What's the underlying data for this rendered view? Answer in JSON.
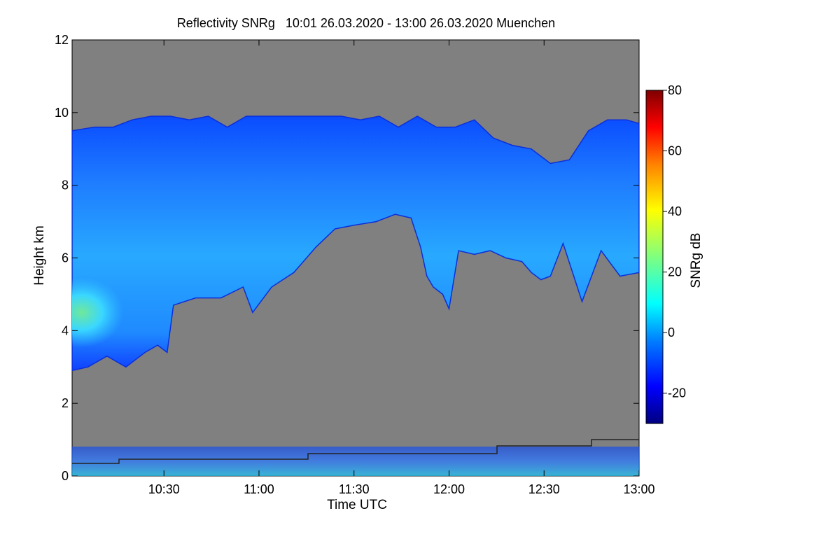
{
  "chart_data": {
    "type": "heatmap",
    "title": "Reflectivity SNRg   10:01 26.03.2020 - 13:00 26.03.2020 Muenchen",
    "xlabel": "Time UTC",
    "ylabel": "Height km",
    "colorbar_label": "SNRg dB",
    "x_range_minutes_utc": [
      601,
      780
    ],
    "x_ticks": [
      {
        "minute": 630,
        "label": "10:30"
      },
      {
        "minute": 660,
        "label": "11:00"
      },
      {
        "minute": 690,
        "label": "11:30"
      },
      {
        "minute": 720,
        "label": "12:00"
      },
      {
        "minute": 750,
        "label": "12:30"
      },
      {
        "minute": 780,
        "label": "13:00"
      }
    ],
    "ylim": [
      0,
      12
    ],
    "y_ticks": [
      0,
      2,
      4,
      6,
      8,
      10,
      12
    ],
    "colorbar_range": [
      -30,
      80
    ],
    "colorbar_ticks": [
      -20,
      0,
      20,
      40,
      60,
      80
    ],
    "cloud_base_km": [
      [
        601,
        2.9
      ],
      [
        606,
        3.0
      ],
      [
        612,
        3.3
      ],
      [
        618,
        3.0
      ],
      [
        624,
        3.4
      ],
      [
        628,
        3.6
      ],
      [
        631,
        3.4
      ],
      [
        633,
        4.7
      ],
      [
        640,
        4.9
      ],
      [
        648,
        4.9
      ],
      [
        655,
        5.2
      ],
      [
        658,
        4.5
      ],
      [
        664,
        5.2
      ],
      [
        671,
        5.6
      ],
      [
        678,
        6.3
      ],
      [
        684,
        6.8
      ],
      [
        690,
        6.9
      ],
      [
        697,
        7.0
      ],
      [
        703,
        7.2
      ],
      [
        708,
        7.1
      ],
      [
        711,
        6.3
      ],
      [
        713,
        5.5
      ],
      [
        715,
        5.2
      ],
      [
        718,
        5.0
      ],
      [
        720,
        4.6
      ],
      [
        723,
        6.2
      ],
      [
        728,
        6.1
      ],
      [
        733,
        6.2
      ],
      [
        738,
        6.0
      ],
      [
        743,
        5.9
      ],
      [
        746,
        5.6
      ],
      [
        749,
        5.4
      ],
      [
        752,
        5.5
      ],
      [
        756,
        6.4
      ],
      [
        762,
        4.8
      ],
      [
        768,
        6.2
      ],
      [
        774,
        5.5
      ],
      [
        780,
        5.6
      ]
    ],
    "cloud_top_km": [
      [
        601,
        9.5
      ],
      [
        608,
        9.6
      ],
      [
        614,
        9.6
      ],
      [
        620,
        9.8
      ],
      [
        626,
        9.9
      ],
      [
        632,
        9.9
      ],
      [
        638,
        9.8
      ],
      [
        644,
        9.9
      ],
      [
        650,
        9.6
      ],
      [
        656,
        9.9
      ],
      [
        662,
        9.9
      ],
      [
        668,
        9.9
      ],
      [
        674,
        9.9
      ],
      [
        680,
        9.9
      ],
      [
        686,
        9.9
      ],
      [
        692,
        9.8
      ],
      [
        698,
        9.9
      ],
      [
        704,
        9.6
      ],
      [
        710,
        9.9
      ],
      [
        716,
        9.6
      ],
      [
        722,
        9.6
      ],
      [
        728,
        9.8
      ],
      [
        734,
        9.3
      ],
      [
        740,
        9.1
      ],
      [
        746,
        9.0
      ],
      [
        752,
        8.6
      ],
      [
        758,
        8.7
      ],
      [
        764,
        9.5
      ],
      [
        770,
        9.8
      ],
      [
        776,
        9.8
      ],
      [
        780,
        9.7
      ]
    ],
    "core_max_snr_db": 18,
    "core_max_location": {
      "minute": 604,
      "height_km": 4.5
    },
    "clear_air_value": "no signal (grey)"
  }
}
